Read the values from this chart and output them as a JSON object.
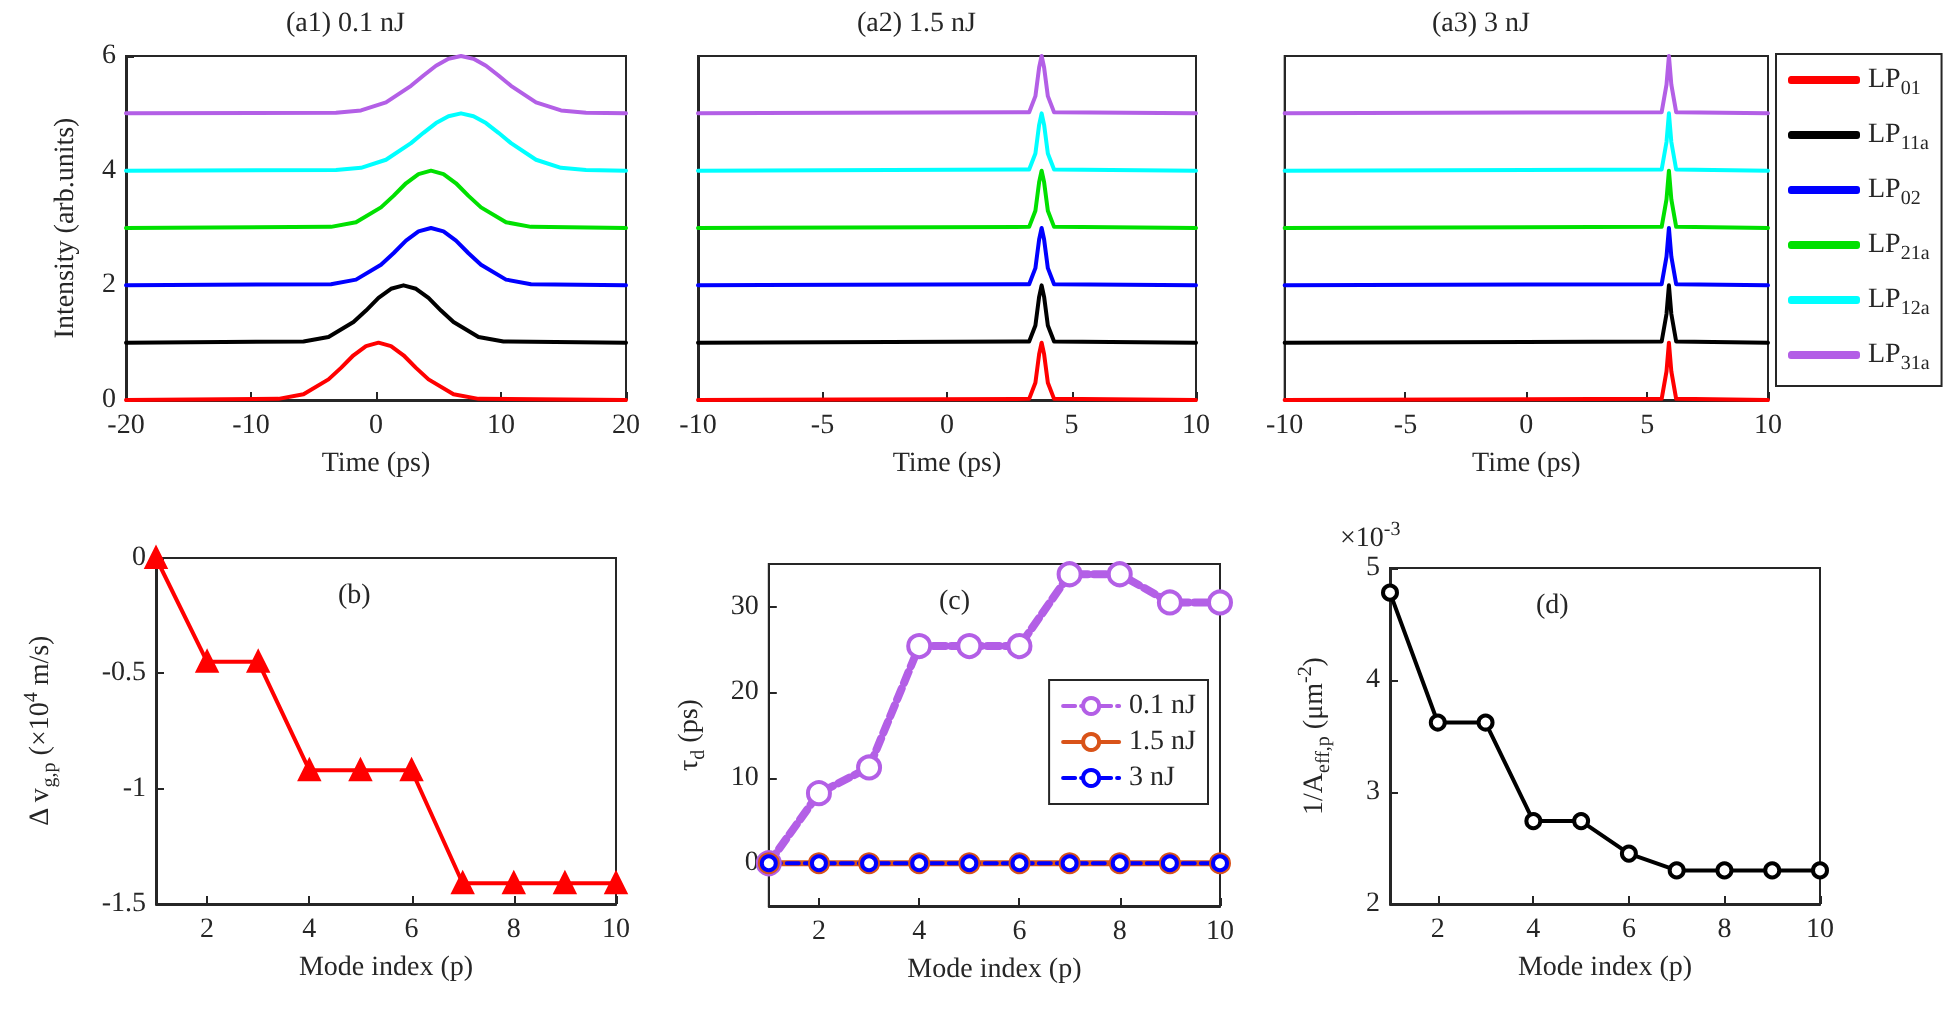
{
  "chart_data": [
    {
      "type": "line",
      "title": "(a1) 0.1 nJ",
      "xlabel": "Time (ps)",
      "ylabel": "Intensity (arb.units)",
      "xlim": [
        -20,
        20
      ],
      "xticks": [
        -20,
        -10,
        0,
        10,
        20
      ],
      "ylim": [
        0,
        6
      ],
      "yticks": [
        0,
        2,
        4,
        6
      ],
      "grid": false,
      "legend": false,
      "marker": "none",
      "line_style": "solid",
      "series": [
        {
          "color": "#ff0000",
          "x": [
            -20,
            -7.8,
            -5.8,
            -3.8,
            -2.8,
            -1.8,
            -0.8,
            0.2,
            1.2,
            2.2,
            3.2,
            4.2,
            6.2,
            8.2,
            20
          ],
          "values": [
            0,
            0.02,
            0.1,
            0.36,
            0.56,
            0.78,
            0.94,
            1,
            0.94,
            0.78,
            0.56,
            0.36,
            0.1,
            0.02,
            0
          ]
        },
        {
          "color": "#000000",
          "x": [
            -20,
            -5.8,
            -3.8,
            -1.8,
            -0.8,
            0.2,
            1.2,
            2.2,
            3.2,
            4.2,
            5.2,
            6.2,
            8.2,
            10.2,
            20
          ],
          "values": [
            1,
            1.02,
            1.1,
            1.36,
            1.56,
            1.78,
            1.94,
            2,
            1.94,
            1.78,
            1.56,
            1.36,
            1.1,
            1.02,
            1
          ]
        },
        {
          "color": "#0000ff",
          "x": [
            -20,
            -3.6,
            -1.6,
            0.4,
            1.4,
            2.4,
            3.4,
            4.4,
            5.4,
            6.4,
            7.4,
            8.4,
            10.4,
            12.4,
            20
          ],
          "values": [
            2,
            2.02,
            2.1,
            2.36,
            2.56,
            2.78,
            2.94,
            3,
            2.94,
            2.78,
            2.56,
            2.36,
            2.1,
            2.02,
            2
          ]
        },
        {
          "color": "#00e000",
          "x": [
            -20,
            -3.6,
            -1.6,
            0.4,
            1.4,
            2.4,
            3.4,
            4.4,
            5.4,
            6.4,
            7.4,
            8.4,
            10.4,
            12.4,
            20
          ],
          "values": [
            3,
            3.02,
            3.1,
            3.36,
            3.56,
            3.78,
            3.94,
            4,
            3.94,
            3.78,
            3.56,
            3.36,
            3.1,
            3.02,
            3
          ]
        },
        {
          "color": "#00ffff",
          "x": [
            -20,
            -3.2,
            -1.2,
            0.8,
            2.8,
            3.8,
            4.8,
            5.8,
            6.8,
            7.8,
            8.8,
            9.8,
            10.8,
            12.8,
            14.8,
            16.8,
            20
          ],
          "values": [
            4,
            4.01,
            4.05,
            4.19,
            4.48,
            4.66,
            4.83,
            4.95,
            5,
            4.95,
            4.83,
            4.66,
            4.48,
            4.19,
            4.05,
            4.01,
            4
          ]
        },
        {
          "color": "#b35fe6",
          "x": [
            -20,
            -3.2,
            -1.2,
            0.8,
            2.8,
            3.8,
            4.8,
            5.8,
            6.8,
            7.8,
            8.8,
            9.8,
            10.8,
            12.8,
            14.8,
            16.8,
            20
          ],
          "values": [
            5,
            5.01,
            5.05,
            5.19,
            5.48,
            5.66,
            5.83,
            5.95,
            6,
            5.95,
            5.83,
            5.66,
            5.48,
            5.19,
            5.05,
            5.01,
            5
          ]
        }
      ]
    },
    {
      "type": "line",
      "title": "(a2) 1.5 nJ",
      "xlabel": "Time (ps)",
      "xlim": [
        -10,
        10
      ],
      "xticks": [
        -10,
        -5,
        0,
        5,
        10
      ],
      "ylim": [
        0,
        6
      ],
      "tick_labels": "x",
      "grid": false,
      "legend": false,
      "marker": "none",
      "line_style": "solid",
      "x": [
        -10,
        3.3,
        3.55,
        3.7,
        3.8,
        3.9,
        4.05,
        4.3,
        10
      ],
      "series": [
        {
          "color": "#ff0000",
          "values": [
            0,
            0.02,
            0.3,
            0.8,
            1,
            0.8,
            0.3,
            0.02,
            0
          ]
        },
        {
          "color": "#000000",
          "values": [
            1,
            1.02,
            1.3,
            1.8,
            2,
            1.8,
            1.3,
            1.02,
            1
          ]
        },
        {
          "color": "#0000ff",
          "values": [
            2,
            2.02,
            2.3,
            2.8,
            3,
            2.8,
            2.3,
            2.02,
            2
          ]
        },
        {
          "color": "#00e000",
          "values": [
            3,
            3.02,
            3.3,
            3.8,
            4,
            3.8,
            3.3,
            3.02,
            3
          ]
        },
        {
          "color": "#00ffff",
          "values": [
            4,
            4.02,
            4.3,
            4.8,
            5,
            4.8,
            4.3,
            4.02,
            4
          ]
        },
        {
          "color": "#b35fe6",
          "values": [
            5,
            5.02,
            5.3,
            5.8,
            6,
            5.8,
            5.3,
            5.02,
            5
          ]
        }
      ]
    },
    {
      "type": "line",
      "title": "(a3) 3 nJ",
      "xlabel": "Time (ps)",
      "xlim": [
        -10,
        10
      ],
      "xticks": [
        -10,
        -5,
        0,
        5,
        10
      ],
      "ylim": [
        0,
        6
      ],
      "tick_labels": "x",
      "grid": false,
      "legend": "right",
      "marker": "none",
      "line_style": "solid",
      "x": [
        -10,
        5.6,
        5.8,
        5.9,
        6.0,
        6.2,
        10
      ],
      "series": [
        {
          "name": "LP$_{01}$",
          "color": "#ff0000",
          "values": [
            0,
            0.02,
            0.5,
            1,
            0.5,
            0.02,
            0
          ]
        },
        {
          "name": "LP$_{11a}$",
          "color": "#000000",
          "values": [
            1,
            1.02,
            1.5,
            2,
            1.5,
            1.02,
            1
          ]
        },
        {
          "name": "LP$_{02}$",
          "color": "#0000ff",
          "values": [
            2,
            2.02,
            2.5,
            3,
            2.5,
            2.02,
            2
          ]
        },
        {
          "name": "LP$_{21a}$",
          "color": "#00e000",
          "values": [
            3,
            3.02,
            3.5,
            4,
            3.5,
            3.02,
            3
          ]
        },
        {
          "name": "LP$_{12a}$",
          "color": "#00ffff",
          "values": [
            4,
            4.02,
            4.5,
            5,
            4.5,
            4.02,
            4
          ]
        },
        {
          "name": "LP$_{31a}$",
          "color": "#b35fe6",
          "values": [
            5,
            5.02,
            5.5,
            6,
            5.5,
            5.02,
            5
          ]
        }
      ]
    },
    {
      "type": "line",
      "xlabel": "Mode index (p)",
      "ylabel": "Δ v$_{g,p}$ (×10$^{4}$ m/s)",
      "annotations": [
        "(b)"
      ],
      "xlim": [
        1,
        10
      ],
      "xticks": [
        2,
        4,
        6,
        8,
        10
      ],
      "ylim": [
        -1.5,
        0
      ],
      "yticks": [
        -1.5,
        -1,
        -0.5,
        0
      ],
      "grid": false,
      "legend": false,
      "marker": "triangle",
      "line_style": "solid",
      "x": [
        1,
        2,
        3,
        4,
        5,
        6,
        7,
        8,
        9,
        10
      ],
      "series": [
        {
          "color": "#ff0000",
          "values": [
            0,
            -0.45,
            -0.45,
            -0.92,
            -0.92,
            -0.92,
            -1.41,
            -1.41,
            -1.41,
            -1.41
          ]
        }
      ]
    },
    {
      "type": "line",
      "xlabel": "Mode index (p)",
      "ylabel": "τ$_{d}$ (ps)",
      "annotations": [
        "(c)"
      ],
      "xlim": [
        1,
        10
      ],
      "xticks": [
        2,
        4,
        6,
        8,
        10
      ],
      "ylim": [
        -5,
        35
      ],
      "yticks": [
        0,
        10,
        20,
        30
      ],
      "grid": false,
      "legend": "right",
      "marker": "circle",
      "x": [
        1,
        2,
        3,
        4,
        5,
        6,
        7,
        8,
        9,
        10
      ],
      "series": [
        {
          "name": "0.1 nJ",
          "color": "#b35fe6",
          "line_style": "dashed",
          "values": [
            0,
            8.2,
            11.2,
            25.4,
            25.4,
            25.4,
            33.8,
            33.8,
            30.5,
            30.5
          ]
        },
        {
          "name": "1.5 nJ",
          "color": "#d95319",
          "line_style": "solid",
          "values": [
            0,
            0,
            0,
            0,
            0,
            0,
            0,
            0,
            0,
            0
          ]
        },
        {
          "name": "3 nJ",
          "color": "#0000ff",
          "line_style": "dashed",
          "values": [
            0,
            0,
            0,
            0,
            0,
            0,
            0,
            0,
            0,
            0
          ]
        }
      ]
    },
    {
      "type": "line",
      "xlabel": "Mode index (p)",
      "ylabel": "1/A$_{eff,p}$ (μm$^{-2}$)",
      "annotations": [
        "(d)",
        "×10$^{-3}$"
      ],
      "xlim": [
        1,
        10
      ],
      "xticks": [
        2,
        4,
        6,
        8,
        10
      ],
      "ylim": [
        2,
        5
      ],
      "yticks": [
        2,
        3,
        4,
        5
      ],
      "grid": false,
      "legend": false,
      "marker": "circle",
      "line_style": "solid",
      "x": [
        1,
        2,
        3,
        4,
        5,
        6,
        7,
        8,
        9,
        10
      ],
      "series": [
        {
          "color": "#000000",
          "values": [
            4.78,
            3.62,
            3.62,
            2.74,
            2.74,
            2.45,
            2.3,
            2.3,
            2.3,
            2.3
          ]
        }
      ]
    }
  ]
}
